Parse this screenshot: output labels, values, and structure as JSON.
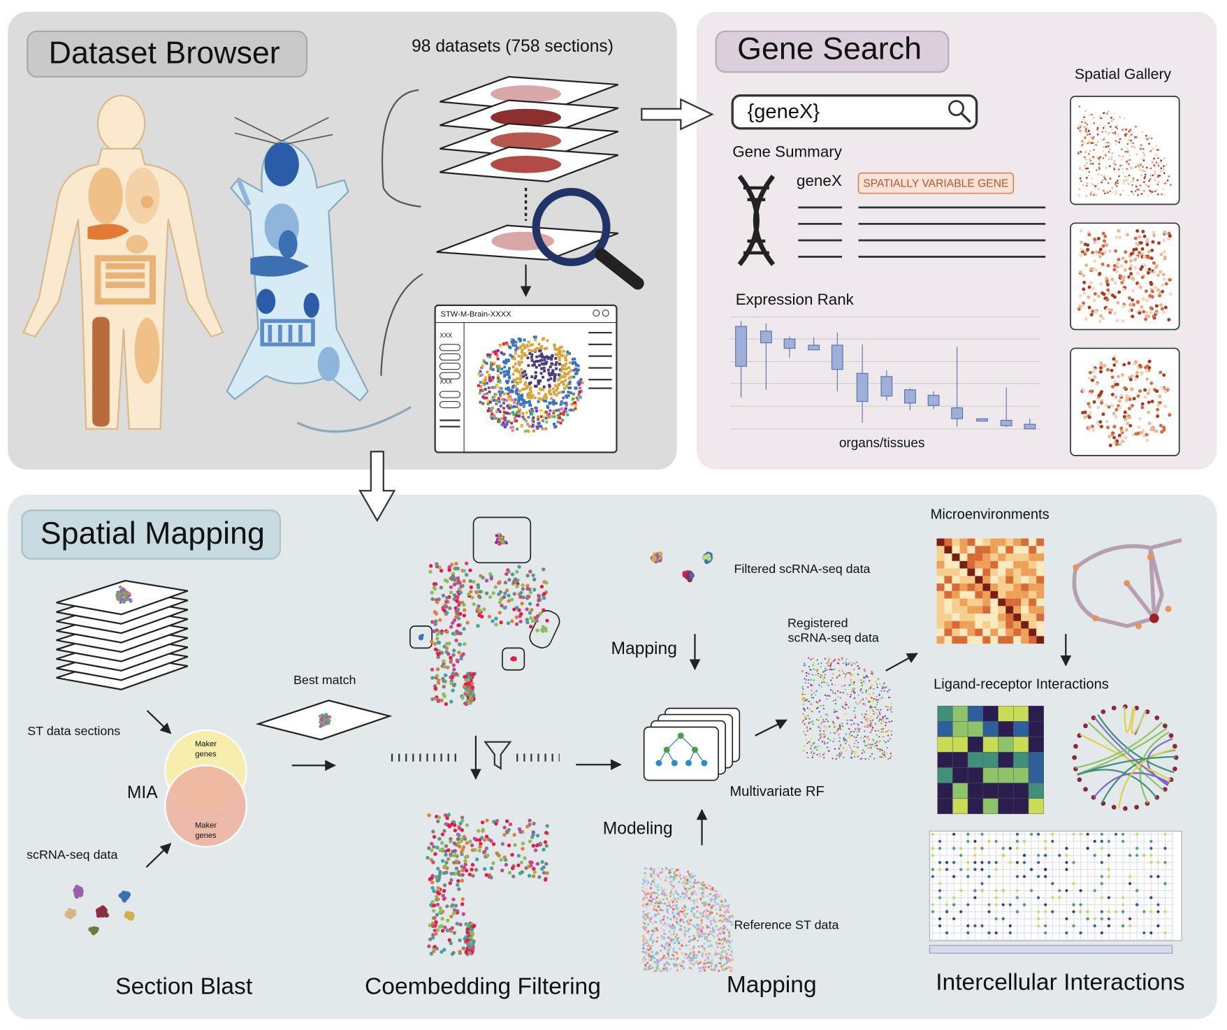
{
  "dataset_browser": {
    "title": "Dataset Browser",
    "count": "98 datasets (758 sections)",
    "window_title": "STW-M-Brain-XXXX",
    "window_labels": [
      "XXX",
      "XXX"
    ]
  },
  "gene_search": {
    "title": "Gene Search",
    "query": "{geneX}",
    "summary_heading": "Gene Summary",
    "gene_name": "geneX",
    "badge": "SPATIALLY VARIABLE GENE",
    "rank_heading": "Expression Rank",
    "rank_axis": "organs/tissues",
    "gallery_heading": "Spatial Gallery"
  },
  "spatial_mapping": {
    "title": "Spatial Mapping",
    "st_sections": "ST data sections",
    "mia": "MIA",
    "marker_top": [
      "Maker",
      "genes"
    ],
    "marker_bottom": [
      "Maker",
      "genes"
    ],
    "scrna": "scRNA-seq data",
    "best_match": "Best match",
    "section_blast": "Section Blast",
    "coembedding": "Coembedding Filtering",
    "filtered": "Filtered scRNA-seq data",
    "mapping_arrow": "Mapping",
    "registered": [
      "Registered",
      "scRNA-seq data"
    ],
    "rf": "Multivariate RF",
    "modeling": "Modeling",
    "reference": "Reference ST data",
    "mapping": "Mapping",
    "microenvironments": "Microenvironments",
    "ligand_receptor": "Ligand-receptor Interactions",
    "intercellular": "Intercellular Interactions"
  }
}
